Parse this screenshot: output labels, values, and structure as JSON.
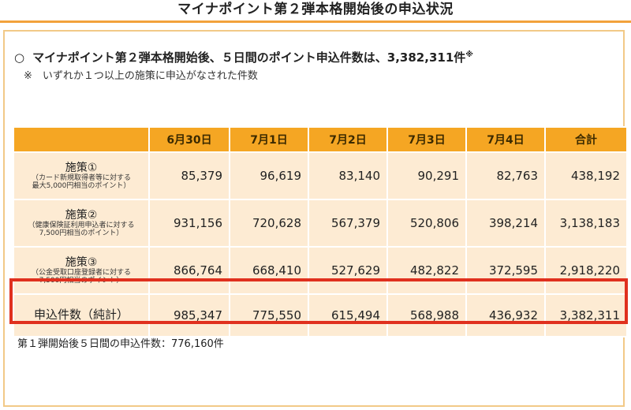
{
  "title": "マイナポイント第２弾本格開始後の申込状況",
  "headline": {
    "bullet": "○",
    "text": "マイナポイント第２弾本格開始後、５日間のポイント申込件数は、3,382,311件",
    "mark": "※"
  },
  "note": "※　いずれか１つ以上の施策に申込がなされた件数",
  "table": {
    "columns": [
      "",
      "6月30日",
      "7月1日",
      "7月2日",
      "7月3日",
      "7月4日",
      "合計"
    ],
    "rows": [
      {
        "name": "施策①",
        "desc1": "（カード新規取得者等に対する",
        "desc2": "最大5,000円相当のポイント）",
        "values": [
          "85,379",
          "96,619",
          "83,140",
          "90,291",
          "82,763",
          "438,192"
        ]
      },
      {
        "name": "施策②",
        "desc1": "（健康保険証利用申込者に対する",
        "desc2": "7,500円相当のポイント）",
        "values": [
          "931,156",
          "720,628",
          "567,379",
          "520,806",
          "398,214",
          "3,138,183"
        ]
      },
      {
        "name": "施策③",
        "desc1": "（公金受取口座登録者に対する",
        "desc2": "7,500円相当のポイント）",
        "values": [
          "866,764",
          "668,410",
          "527,629",
          "482,822",
          "372,595",
          "2,918,220"
        ]
      }
    ],
    "total": {
      "name": "申込件数（純計）",
      "values": [
        "985,347",
        "775,550",
        "615,494",
        "568,988",
        "436,932",
        "3,382,311"
      ]
    }
  },
  "footer": "第１弾開始後５日間の申込件数：776,160件",
  "colors": {
    "header_bg": "#f5a623",
    "cell_bg": "#fdebd3",
    "highlight_border": "#e0301e",
    "panel_border": "#f2c987"
  }
}
